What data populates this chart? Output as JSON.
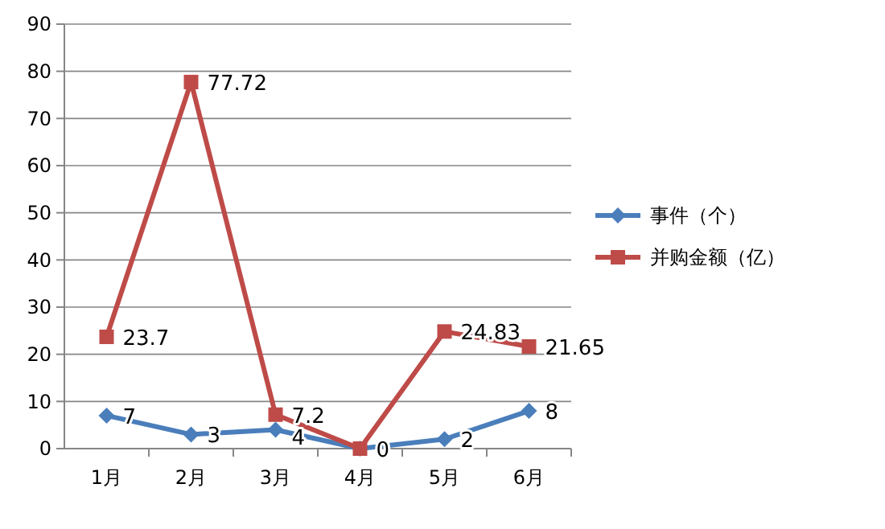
{
  "chart_data": {
    "type": "line",
    "categories": [
      "1月",
      "2月",
      "3月",
      "4月",
      "5月",
      "6月"
    ],
    "series": [
      {
        "name": "事件（个）",
        "color": "#4a7ebb",
        "marker": "diamond",
        "values": [
          7,
          3,
          4,
          0,
          2,
          8
        ],
        "value_labels": [
          "7",
          "3",
          "4",
          "0",
          "2",
          "8"
        ]
      },
      {
        "name": "并购金额（亿）",
        "color": "#be4b48",
        "marker": "square",
        "values": [
          23.7,
          77.72,
          7.2,
          0,
          24.83,
          21.65
        ],
        "value_labels": [
          "23.7",
          "77.72",
          "7.2",
          null,
          "24.83",
          "21.65"
        ]
      }
    ],
    "ylim": [
      0,
      90
    ],
    "yticks": [
      0,
      10,
      20,
      30,
      40,
      50,
      60,
      70,
      80,
      90
    ],
    "grid": "y",
    "legend": "right"
  }
}
